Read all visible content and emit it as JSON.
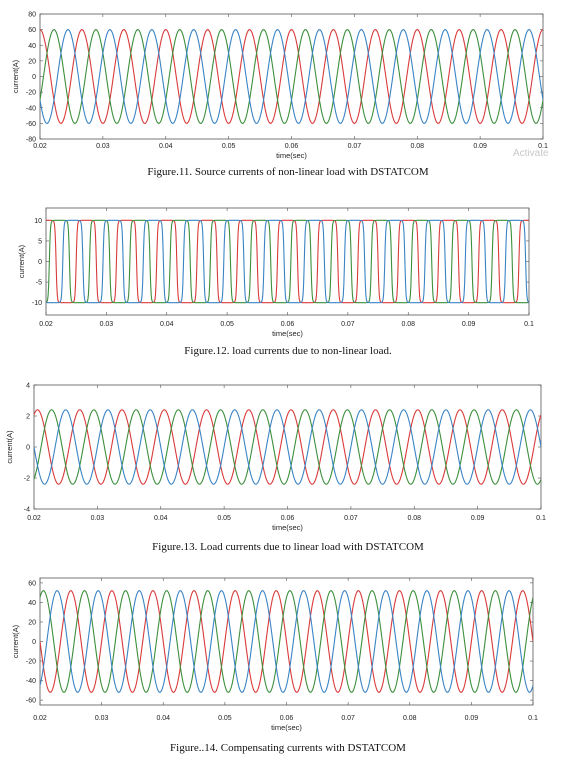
{
  "colors": {
    "red": "#d93b3b",
    "green": "#3d8f3d",
    "blue": "#3b84c4"
  },
  "watermark": "Activate",
  "figures": [
    {
      "caption": "Figure.11. Source currents of non-linear load with DSTATCOM",
      "chart_data": {
        "type": "line",
        "xlabel": "time(sec)",
        "ylabel": "current(A)",
        "xlim": [
          0.02,
          0.1
        ],
        "ylim": [
          -80,
          80
        ],
        "xticks": [
          "0.02",
          "0.03",
          "0.04",
          "0.05",
          "0.06",
          "0.07",
          "0.08",
          "0.09",
          "0.1"
        ],
        "yticks": [
          "80",
          "60",
          "40",
          "20",
          "0",
          "-20",
          "-40",
          "-60",
          "-80"
        ],
        "ytick_values": [
          80,
          60,
          40,
          20,
          0,
          -20,
          -40,
          -60,
          -80
        ],
        "waveform": "sine",
        "frequency_hz": 150,
        "amplitude": 60,
        "series": [
          {
            "color": "red",
            "phase_deg": 90
          },
          {
            "color": "green",
            "phase_deg": -30
          },
          {
            "color": "blue",
            "phase_deg": 210
          }
        ]
      }
    },
    {
      "caption": "Figure.12. load currents due to non-linear load.",
      "chart_data": {
        "type": "line",
        "xlabel": "time(sec)",
        "ylabel": "current(A)",
        "xlim": [
          0.02,
          0.1
        ],
        "ylim": [
          -13,
          13
        ],
        "xticks": [
          "0.02",
          "0.03",
          "0.04",
          "0.05",
          "0.06",
          "0.07",
          "0.08",
          "0.09",
          "0.1"
        ],
        "yticks": [
          "10",
          "5",
          "0",
          "-5",
          "-10"
        ],
        "ytick_values": [
          10,
          5,
          0,
          -5,
          -10
        ],
        "waveform": "square",
        "frequency_hz": 150,
        "amplitude": 10,
        "series": [
          {
            "color": "red",
            "phase_deg": 90
          },
          {
            "color": "green",
            "phase_deg": -30
          },
          {
            "color": "blue",
            "phase_deg": 210
          }
        ]
      }
    },
    {
      "caption": "Figure.13. Load currents due to linear load with DSTATCOM",
      "chart_data": {
        "type": "line",
        "xlabel": "time(sec)",
        "ylabel": "current(A)",
        "xlim": [
          0.02,
          0.1
        ],
        "ylim": [
          -4,
          4
        ],
        "xticks": [
          "0.02",
          "0.03",
          "0.04",
          "0.05",
          "0.06",
          "0.07",
          "0.08",
          "0.09",
          "0.1"
        ],
        "yticks": [
          "4",
          "2",
          "0",
          "-2",
          "-4"
        ],
        "ytick_values": [
          4,
          2,
          0,
          -2,
          -4
        ],
        "waveform": "sine",
        "frequency_hz": 150,
        "amplitude": 2.4,
        "series": [
          {
            "color": "red",
            "phase_deg": 60
          },
          {
            "color": "green",
            "phase_deg": -60
          },
          {
            "color": "blue",
            "phase_deg": 180
          }
        ]
      }
    },
    {
      "caption": "Figure..14.  Compensating currents with DSTATCOM",
      "chart_data": {
        "type": "line",
        "xlabel": "time(sec)",
        "ylabel": "current(A)",
        "xlim": [
          0.02,
          0.1
        ],
        "ylim": [
          -65,
          65
        ],
        "xticks": [
          "0.02",
          "0.03",
          "0.04",
          "0.05",
          "0.06",
          "0.07",
          "0.08",
          "0.09",
          "0.1"
        ],
        "yticks": [
          "60",
          "40",
          "20",
          "0",
          "-20",
          "-40",
          "-60"
        ],
        "ytick_values": [
          60,
          40,
          20,
          0,
          -20,
          -40,
          -60
        ],
        "waveform": "sine",
        "frequency_hz": 150,
        "amplitude": 52,
        "series": [
          {
            "color": "red",
            "phase_deg": 180
          },
          {
            "color": "green",
            "phase_deg": 60
          },
          {
            "color": "blue",
            "phase_deg": -60
          }
        ]
      }
    }
  ]
}
